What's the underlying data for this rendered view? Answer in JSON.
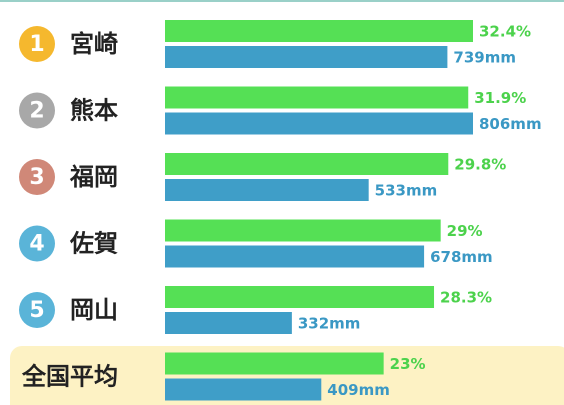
{
  "chart_data": {
    "type": "bar",
    "categories": [
      "宮崎",
      "熊本",
      "福岡",
      "佐賀",
      "岡山",
      "全国平均"
    ],
    "ranks": [
      "1",
      "2",
      "3",
      "4",
      "5"
    ],
    "rank_colors": [
      "#f5b82e",
      "#a8a8a8",
      "#d08878",
      "#5ab4d8",
      "#5ab4d8"
    ],
    "series": [
      {
        "color": "#55e055",
        "values": [
          32.4,
          31.9,
          29.8,
          29,
          28.3,
          23
        ],
        "value_labels": [
          "32.4%",
          "31.9%",
          "29.8%",
          "29%",
          "28.3%",
          "23%"
        ],
        "label_color": "#4cd24c"
      },
      {
        "color": "#3f9ec8",
        "values": [
          739,
          806,
          533,
          678,
          332,
          409
        ],
        "value_labels": [
          "739mm",
          "806mm",
          "533mm",
          "678mm",
          "332mm",
          "409mm"
        ],
        "label_color": "#3a98c4"
      }
    ]
  }
}
